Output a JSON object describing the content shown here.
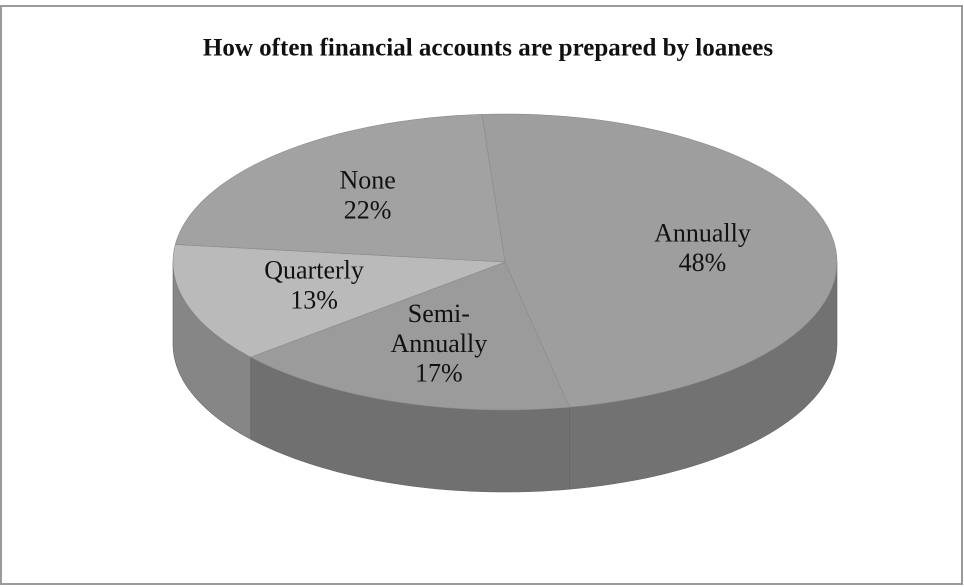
{
  "chart_data": {
    "type": "pie",
    "title": "How often financial accounts are prepared  by loanees",
    "categories": [
      "Annually",
      "Semi-Annually",
      "Quarterly",
      "None"
    ],
    "values": [
      48,
      17,
      13,
      22
    ],
    "value_labels": [
      "48%",
      "17%",
      "13%",
      "22%"
    ],
    "colors": [
      "#9e9e9e",
      "#9b9b9b",
      "#bababa",
      "#a2a2a2"
    ],
    "style": "3d"
  }
}
